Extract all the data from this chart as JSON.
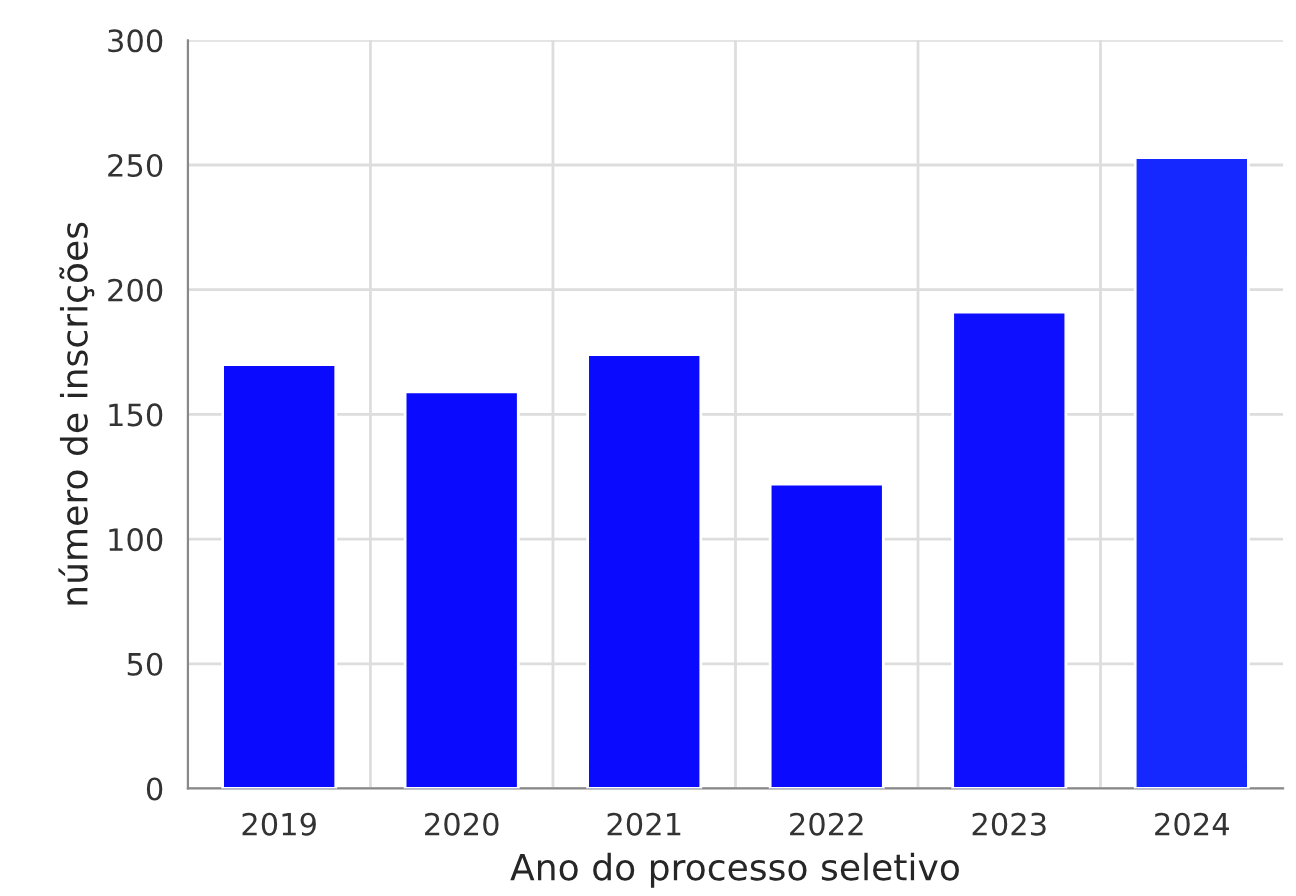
{
  "chart_data": {
    "type": "bar",
    "xlabel": "Ano do processo seletivo",
    "ylabel": "número de inscrições",
    "categories": [
      "2019",
      "2020",
      "2021",
      "2022",
      "2023",
      "2024"
    ],
    "values": [
      170,
      159,
      174,
      122,
      191,
      253
    ],
    "colors": [
      "#0a0aff",
      "#0a0aff",
      "#0a0aff",
      "#0a0aff",
      "#0f0fff",
      "#1428ff"
    ],
    "ylim": [
      0,
      300
    ],
    "yticks": [
      0,
      50,
      100,
      150,
      200,
      250,
      300
    ],
    "grid": true
  }
}
